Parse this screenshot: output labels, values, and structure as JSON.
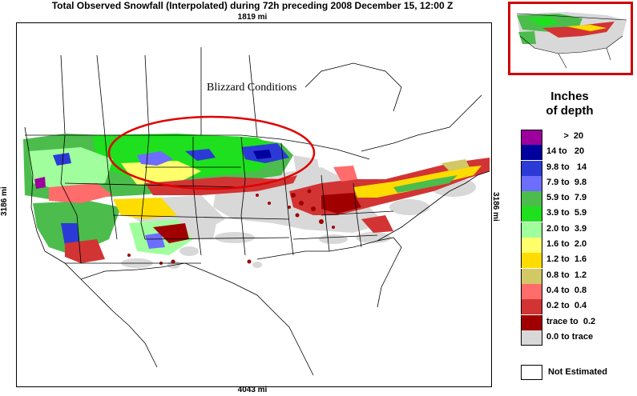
{
  "title": "Total Observed Snowfall (Interpolated) during 72h preceding 2008 December 15, 12:00 Z",
  "scale": {
    "top": "1819 mi",
    "bottom": "4043 mi",
    "left": "3186 mi",
    "right": "3186 mi"
  },
  "annotation": "Blizzard Conditions",
  "legend": {
    "title_line1": "Inches",
    "title_line2": "of depth",
    "items": [
      {
        "label": "       >  20",
        "color": "#9c009c"
      },
      {
        "label": "14 to   20",
        "color": "#00009c"
      },
      {
        "label": "9.8 to   14",
        "color": "#2b3ad6"
      },
      {
        "label": "7.9 to  9.8",
        "color": "#6d6dff"
      },
      {
        "label": "5.9 to  7.9",
        "color": "#4cbc4c"
      },
      {
        "label": "3.9 to  5.9",
        "color": "#1ee01e"
      },
      {
        "label": "2.0 to  3.9",
        "color": "#a0ff9c"
      },
      {
        "label": "1.6 to  2.0",
        "color": "#ffff6c"
      },
      {
        "label": "1.2 to  1.6",
        "color": "#ffdc00"
      },
      {
        "label": "0.8 to  1.2",
        "color": "#d2c865"
      },
      {
        "label": "0.4 to  0.8",
        "color": "#ff6c6c"
      },
      {
        "label": "0.2 to  0.4",
        "color": "#d23434"
      },
      {
        "label": "trace to  0.2",
        "color": "#a00000"
      },
      {
        "label": "0.0 to trace",
        "color": "#d8d8d8"
      }
    ],
    "not_estimated": "Not Estimated"
  },
  "highlight_color": "#e00000"
}
